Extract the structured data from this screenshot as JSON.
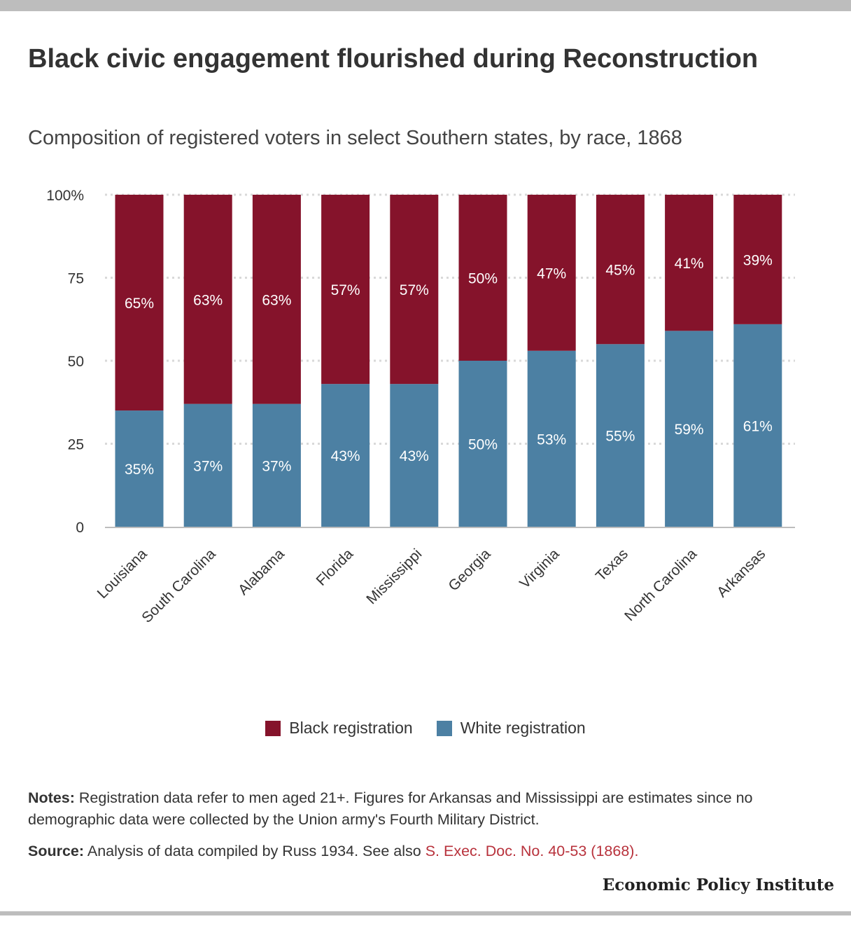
{
  "title": "Black civic engagement flourished during Reconstruction",
  "subtitle": "Composition of registered voters in select Southern states, by race, 1868",
  "colors": {
    "black": "#85132b",
    "white": "#4c80a3",
    "grid": "#d9d9d9",
    "link": "#b8323c"
  },
  "chart_data": {
    "type": "bar",
    "stacked": true,
    "categories": [
      "Louisiana",
      "South Carolina",
      "Alabama",
      "Florida",
      "Mississippi",
      "Georgia",
      "Virginia",
      "Texas",
      "North Carolina",
      "Arkansas"
    ],
    "series": [
      {
        "name": "White registration",
        "color": "#4c80a3",
        "values": [
          35,
          37,
          37,
          43,
          43,
          50,
          53,
          55,
          59,
          61
        ]
      },
      {
        "name": "Black registration",
        "color": "#85132b",
        "values": [
          65,
          63,
          63,
          57,
          57,
          50,
          47,
          45,
          41,
          39
        ]
      }
    ],
    "value_suffix": "%",
    "y_ticks": [
      0,
      25,
      50,
      75,
      100
    ],
    "y_tick_labels": [
      "0",
      "25",
      "50",
      "75",
      "100%"
    ],
    "ylim": [
      0,
      100
    ],
    "grid": true,
    "legend_position": "bottom"
  },
  "legend": {
    "black_label": "Black registration",
    "white_label": "White registration"
  },
  "notes": {
    "label": "Notes:",
    "text": " Registration data refer to men aged 21+. Figures for Arkansas and Mississippi are estimates since no demographic data were collected by the Union army's Fourth Military District."
  },
  "source": {
    "label": "Source:",
    "text": " Analysis of data compiled by Russ 1934. See also ",
    "link_text": "S. Exec. Doc. No. 40-53 (1868)."
  },
  "brand": "Economic Policy Institute"
}
